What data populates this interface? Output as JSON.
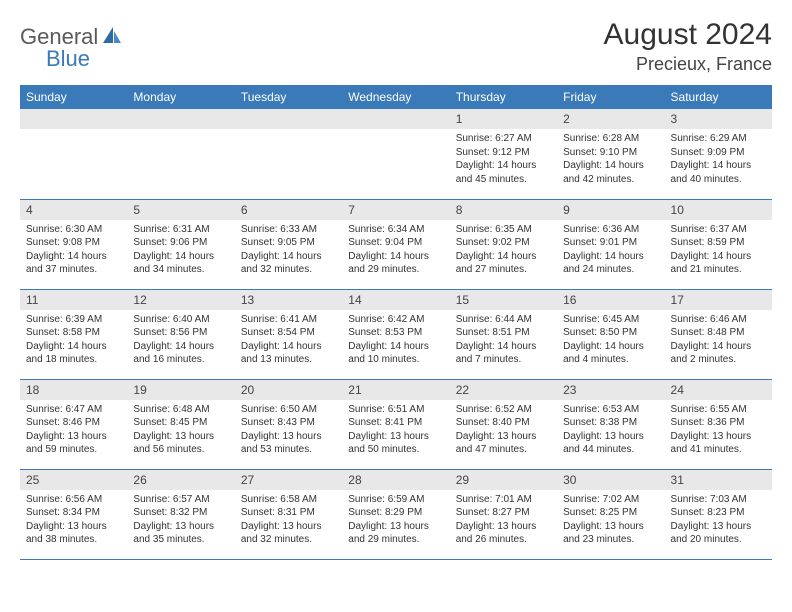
{
  "logo": {
    "part1": "General",
    "part2": "Blue"
  },
  "title": "August 2024",
  "location": "Precieux, France",
  "colors": {
    "header_bg": "#3a7ab8",
    "header_text": "#ffffff",
    "daynum_bg": "#e8e8e8",
    "border": "#3a7ab8",
    "logo_gray": "#5a5a5a",
    "logo_blue": "#3a7ab8"
  },
  "day_headers": [
    "Sunday",
    "Monday",
    "Tuesday",
    "Wednesday",
    "Thursday",
    "Friday",
    "Saturday"
  ],
  "weeks": [
    [
      null,
      null,
      null,
      null,
      {
        "n": "1",
        "sunrise": "6:27 AM",
        "sunset": "9:12 PM",
        "dl": "14 hours and 45 minutes."
      },
      {
        "n": "2",
        "sunrise": "6:28 AM",
        "sunset": "9:10 PM",
        "dl": "14 hours and 42 minutes."
      },
      {
        "n": "3",
        "sunrise": "6:29 AM",
        "sunset": "9:09 PM",
        "dl": "14 hours and 40 minutes."
      }
    ],
    [
      {
        "n": "4",
        "sunrise": "6:30 AM",
        "sunset": "9:08 PM",
        "dl": "14 hours and 37 minutes."
      },
      {
        "n": "5",
        "sunrise": "6:31 AM",
        "sunset": "9:06 PM",
        "dl": "14 hours and 34 minutes."
      },
      {
        "n": "6",
        "sunrise": "6:33 AM",
        "sunset": "9:05 PM",
        "dl": "14 hours and 32 minutes."
      },
      {
        "n": "7",
        "sunrise": "6:34 AM",
        "sunset": "9:04 PM",
        "dl": "14 hours and 29 minutes."
      },
      {
        "n": "8",
        "sunrise": "6:35 AM",
        "sunset": "9:02 PM",
        "dl": "14 hours and 27 minutes."
      },
      {
        "n": "9",
        "sunrise": "6:36 AM",
        "sunset": "9:01 PM",
        "dl": "14 hours and 24 minutes."
      },
      {
        "n": "10",
        "sunrise": "6:37 AM",
        "sunset": "8:59 PM",
        "dl": "14 hours and 21 minutes."
      }
    ],
    [
      {
        "n": "11",
        "sunrise": "6:39 AM",
        "sunset": "8:58 PM",
        "dl": "14 hours and 18 minutes."
      },
      {
        "n": "12",
        "sunrise": "6:40 AM",
        "sunset": "8:56 PM",
        "dl": "14 hours and 16 minutes."
      },
      {
        "n": "13",
        "sunrise": "6:41 AM",
        "sunset": "8:54 PM",
        "dl": "14 hours and 13 minutes."
      },
      {
        "n": "14",
        "sunrise": "6:42 AM",
        "sunset": "8:53 PM",
        "dl": "14 hours and 10 minutes."
      },
      {
        "n": "15",
        "sunrise": "6:44 AM",
        "sunset": "8:51 PM",
        "dl": "14 hours and 7 minutes."
      },
      {
        "n": "16",
        "sunrise": "6:45 AM",
        "sunset": "8:50 PM",
        "dl": "14 hours and 4 minutes."
      },
      {
        "n": "17",
        "sunrise": "6:46 AM",
        "sunset": "8:48 PM",
        "dl": "14 hours and 2 minutes."
      }
    ],
    [
      {
        "n": "18",
        "sunrise": "6:47 AM",
        "sunset": "8:46 PM",
        "dl": "13 hours and 59 minutes."
      },
      {
        "n": "19",
        "sunrise": "6:48 AM",
        "sunset": "8:45 PM",
        "dl": "13 hours and 56 minutes."
      },
      {
        "n": "20",
        "sunrise": "6:50 AM",
        "sunset": "8:43 PM",
        "dl": "13 hours and 53 minutes."
      },
      {
        "n": "21",
        "sunrise": "6:51 AM",
        "sunset": "8:41 PM",
        "dl": "13 hours and 50 minutes."
      },
      {
        "n": "22",
        "sunrise": "6:52 AM",
        "sunset": "8:40 PM",
        "dl": "13 hours and 47 minutes."
      },
      {
        "n": "23",
        "sunrise": "6:53 AM",
        "sunset": "8:38 PM",
        "dl": "13 hours and 44 minutes."
      },
      {
        "n": "24",
        "sunrise": "6:55 AM",
        "sunset": "8:36 PM",
        "dl": "13 hours and 41 minutes."
      }
    ],
    [
      {
        "n": "25",
        "sunrise": "6:56 AM",
        "sunset": "8:34 PM",
        "dl": "13 hours and 38 minutes."
      },
      {
        "n": "26",
        "sunrise": "6:57 AM",
        "sunset": "8:32 PM",
        "dl": "13 hours and 35 minutes."
      },
      {
        "n": "27",
        "sunrise": "6:58 AM",
        "sunset": "8:31 PM",
        "dl": "13 hours and 32 minutes."
      },
      {
        "n": "28",
        "sunrise": "6:59 AM",
        "sunset": "8:29 PM",
        "dl": "13 hours and 29 minutes."
      },
      {
        "n": "29",
        "sunrise": "7:01 AM",
        "sunset": "8:27 PM",
        "dl": "13 hours and 26 minutes."
      },
      {
        "n": "30",
        "sunrise": "7:02 AM",
        "sunset": "8:25 PM",
        "dl": "13 hours and 23 minutes."
      },
      {
        "n": "31",
        "sunrise": "7:03 AM",
        "sunset": "8:23 PM",
        "dl": "13 hours and 20 minutes."
      }
    ]
  ]
}
